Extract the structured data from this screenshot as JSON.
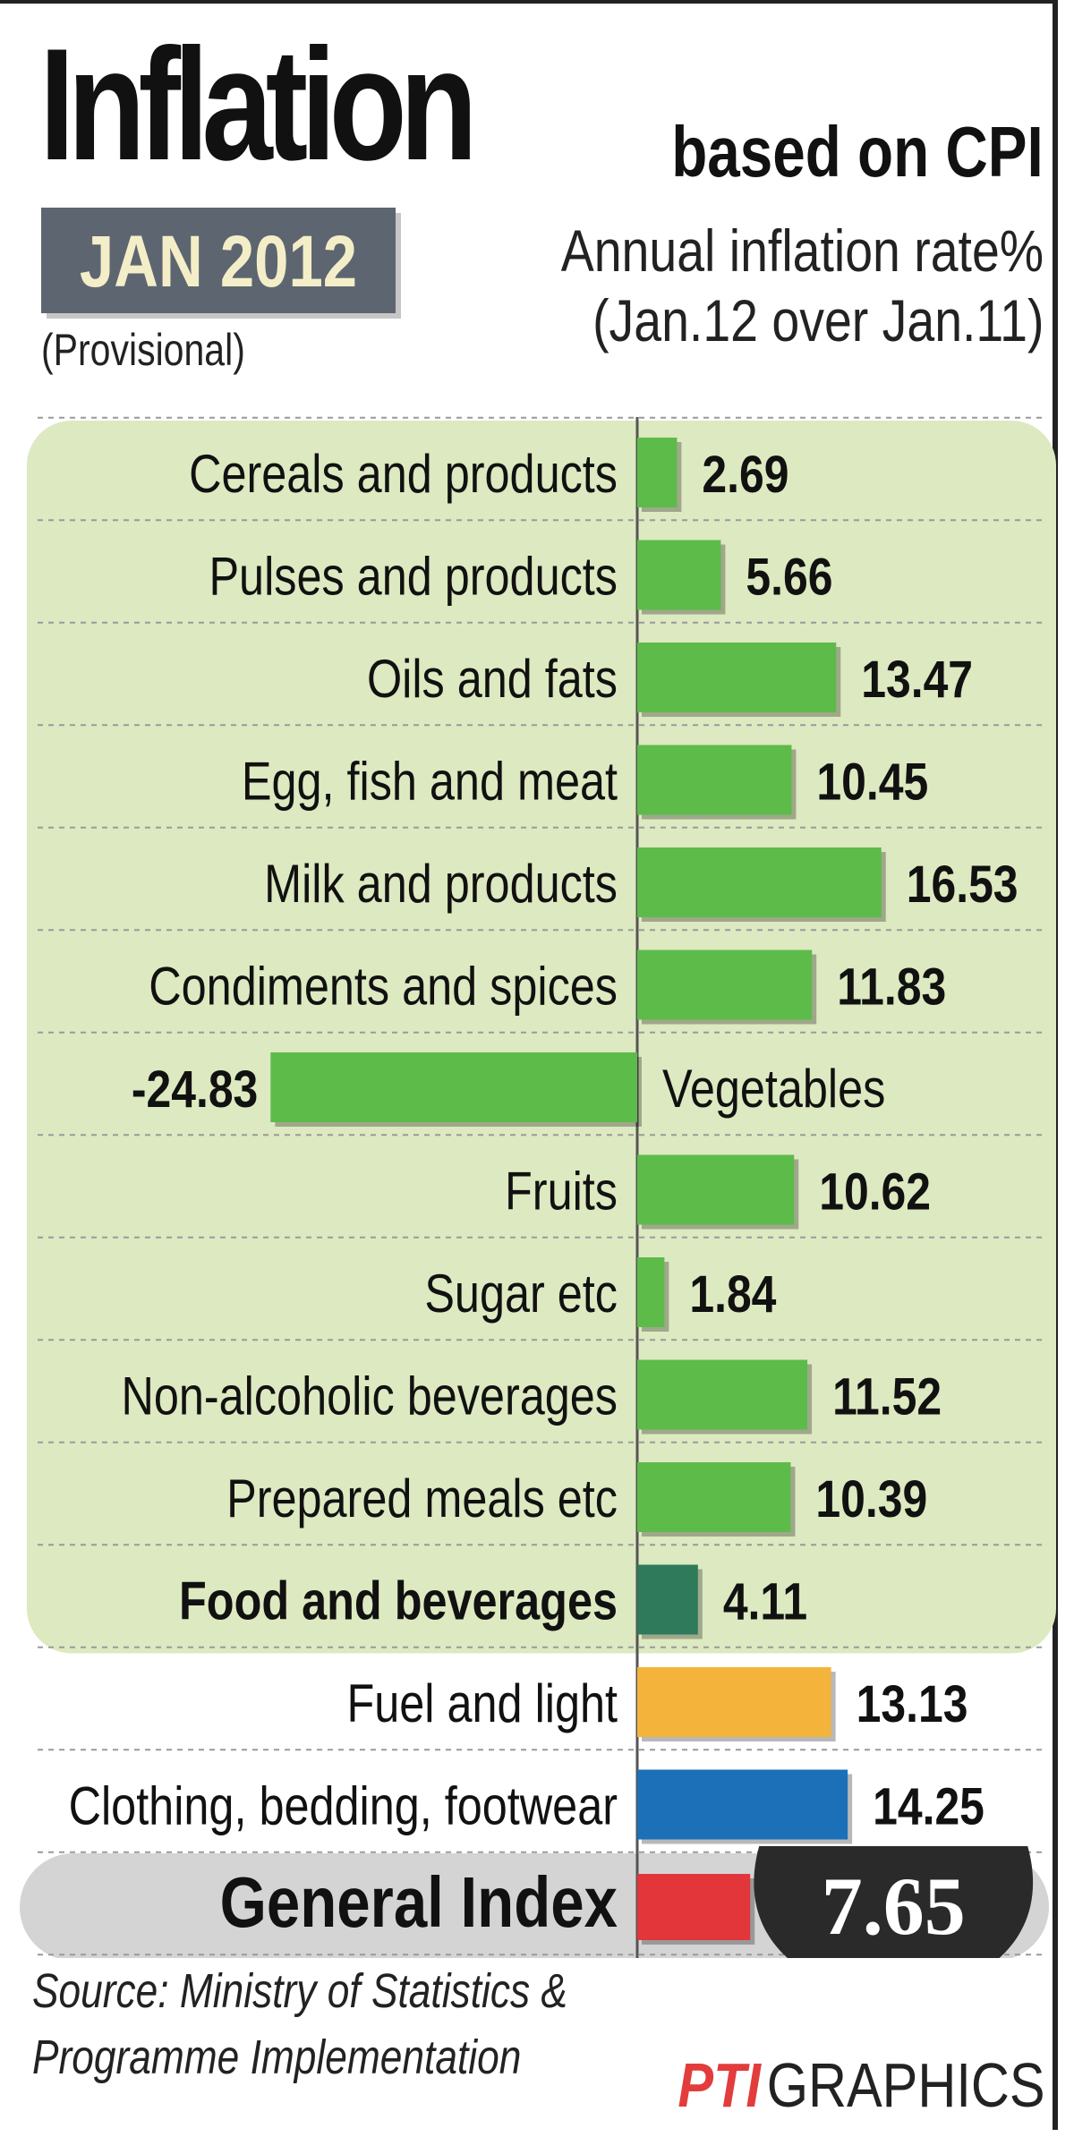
{
  "header": {
    "title": "Inflation",
    "subtitle": "based on CPI",
    "date": "JAN 2012",
    "status": "(Provisional)",
    "rate_line1": "Annual inflation rate%",
    "rate_line2": "(Jan.12 over Jan.11)"
  },
  "colors": {
    "food_panel": "#dde9c0",
    "bar_green": "#5dbb4a",
    "bar_dark_green": "#2e7a5a",
    "bar_orange": "#f4b33a",
    "bar_blue": "#1b70b8",
    "bar_red": "#e2363b",
    "badge": "#2a2a2a"
  },
  "chart_data": {
    "type": "bar",
    "orientation": "horizontal",
    "categories": [
      "Cereals and products",
      "Pulses and products",
      "Oils and fats",
      "Egg, fish and meat",
      "Milk and products",
      "Condiments and spices",
      "Vegetables",
      "Fruits",
      "Sugar etc",
      "Non-alcoholic beverages",
      "Prepared meals etc",
      "Food and beverages",
      "Fuel and light",
      "Clothing, bedding, footwear",
      "General Index"
    ],
    "values": [
      2.69,
      5.66,
      13.47,
      10.45,
      16.53,
      11.83,
      -24.83,
      10.62,
      1.84,
      11.52,
      10.39,
      4.11,
      13.13,
      14.25,
      7.65
    ],
    "value_labels": [
      "2.69",
      "5.66",
      "13.47",
      "10.45",
      "16.53",
      "11.83",
      "-24.83",
      "10.62",
      "1.84",
      "11.52",
      "10.39",
      "4.11",
      "13.13",
      "14.25",
      "7.65"
    ],
    "bar_colors": [
      "green",
      "green",
      "green",
      "green",
      "green",
      "green",
      "green",
      "green",
      "green",
      "green",
      "green",
      "dark_green",
      "orange",
      "blue",
      "red"
    ],
    "bold_categories": [
      "Food and beverages",
      "General Index"
    ],
    "food_group": [
      "Cereals and products",
      "Pulses and products",
      "Oils and fats",
      "Egg, fish and meat",
      "Milk and products",
      "Condiments and spices",
      "Vegetables",
      "Fruits",
      "Sugar etc",
      "Non-alcoholic beverages",
      "Prepared meals etc",
      "Food and beverages"
    ],
    "xlabel": "",
    "ylabel": "Annual inflation rate%",
    "grid": false,
    "legend": "none"
  },
  "footer": {
    "source_line1": "Source: Ministry of Statistics &",
    "source_line2": "Programme Implementation",
    "brand": "PTI",
    "brand_suffix": "GRAPHICS"
  }
}
